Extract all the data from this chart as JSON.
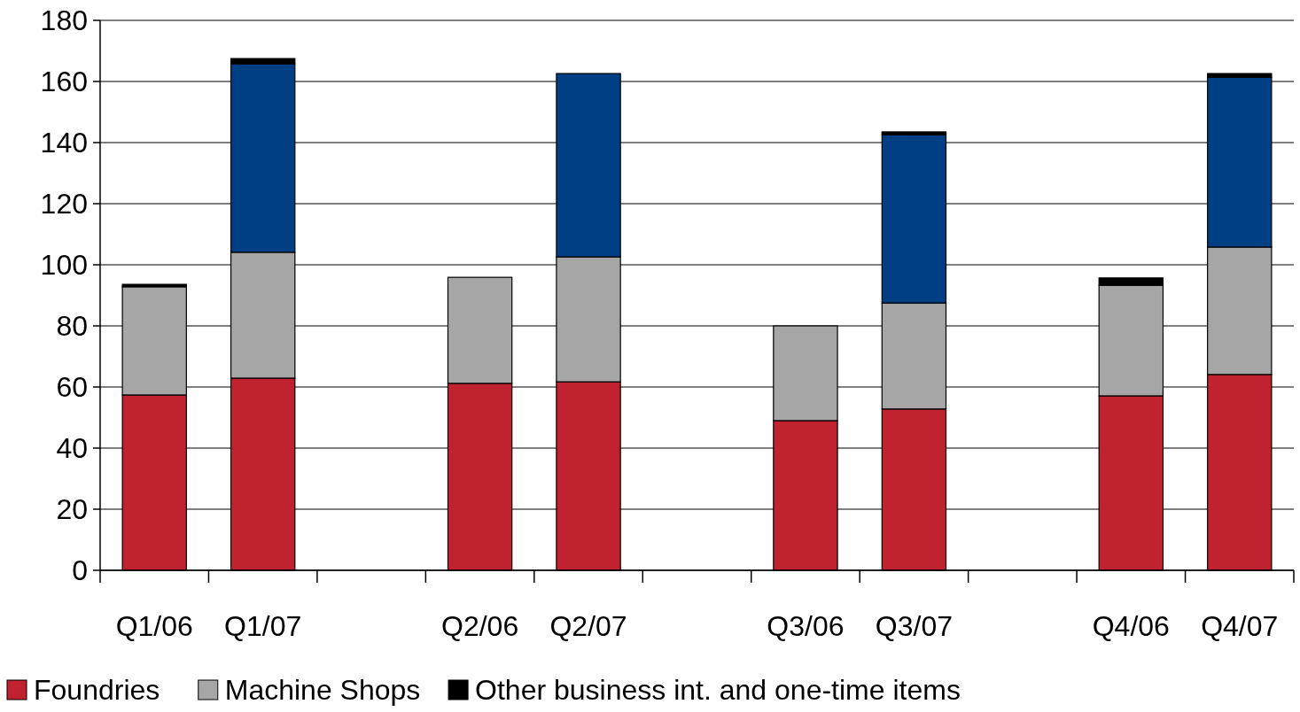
{
  "chart_data": {
    "type": "bar",
    "stacked": true,
    "categories": [
      "Q1/06",
      "Q1/07",
      null,
      "Q2/06",
      "Q2/07",
      null,
      "Q3/06",
      "Q3/07",
      null,
      "Q4/06",
      "Q4/07"
    ],
    "series": [
      {
        "name": "Foundries",
        "color": "#c0232f",
        "values": [
          57.4,
          62.9,
          null,
          61.2,
          61.7,
          null,
          49.0,
          52.8,
          null,
          57.1,
          64.1
        ]
      },
      {
        "name": "Machine Shops",
        "color": "#a6a6a6",
        "values": [
          35.4,
          41.2,
          null,
          34.7,
          40.9,
          null,
          31.0,
          34.7,
          null,
          36.2,
          41.7
        ]
      },
      {
        "color": "#003f84",
        "values": [
          0,
          61.7,
          null,
          0,
          60.0,
          null,
          0,
          55.1,
          null,
          0,
          55.6
        ]
      },
      {
        "name": "Other business int. and one-time items",
        "color": "#000000",
        "values": [
          0.8,
          1.7,
          null,
          0,
          0,
          null,
          0,
          0.9,
          null,
          2.4,
          1.2
        ]
      }
    ],
    "ylim": [
      0,
      180
    ],
    "yticks": [
      0,
      20,
      40,
      60,
      80,
      100,
      120,
      140,
      160,
      180
    ],
    "grid": "y",
    "legend": "bottom"
  }
}
